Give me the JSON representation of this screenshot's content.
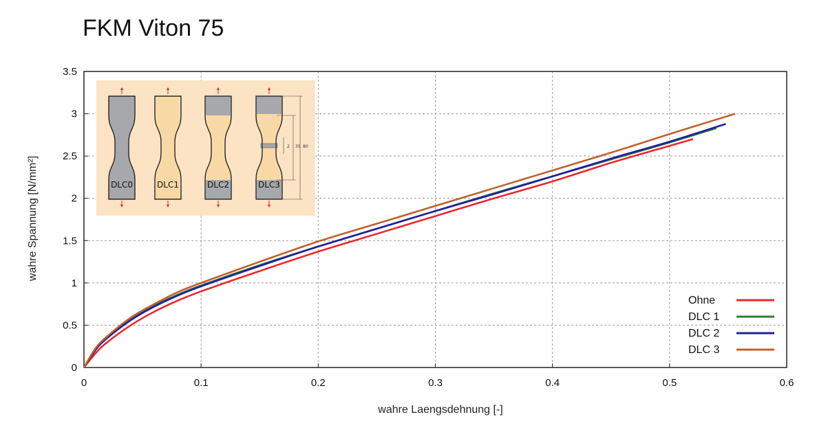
{
  "chart_data": {
    "type": "line",
    "title": "FKM Viton 75",
    "xlabel": "wahre Laengsdehnung [-]",
    "ylabel": "wahre Spannung [N/mm²]",
    "xlim": [
      0,
      0.6
    ],
    "ylim": [
      0,
      3.5
    ],
    "x_ticks": [
      "0",
      "0.1",
      "0.2",
      "0.3",
      "0.4",
      "0.5",
      "0.6"
    ],
    "y_ticks": [
      "0",
      "0.5",
      "1",
      "1.5",
      "2",
      "2.5",
      "3",
      "3.5"
    ],
    "grid": true,
    "legend_position": "bottom-right",
    "series": [
      {
        "name": "Ohne",
        "color": "#e8282e",
        "x": [
          0,
          0.01,
          0.02,
          0.04,
          0.06,
          0.08,
          0.1,
          0.15,
          0.2,
          0.25,
          0.3,
          0.35,
          0.4,
          0.45,
          0.5,
          0.52
        ],
        "y": [
          0,
          0.17,
          0.3,
          0.5,
          0.66,
          0.79,
          0.9,
          1.14,
          1.37,
          1.58,
          1.79,
          2.0,
          2.2,
          2.42,
          2.62,
          2.7
        ]
      },
      {
        "name": "DLC 1",
        "color": "#2e7d32",
        "x": [
          0,
          0.01,
          0.02,
          0.04,
          0.06,
          0.08,
          0.1,
          0.15,
          0.2,
          0.25,
          0.3,
          0.35,
          0.4,
          0.45,
          0.5,
          0.54
        ],
        "y": [
          0,
          0.22,
          0.36,
          0.57,
          0.73,
          0.86,
          0.97,
          1.21,
          1.43,
          1.64,
          1.85,
          2.06,
          2.26,
          2.46,
          2.66,
          2.83
        ]
      },
      {
        "name": "DLC 2",
        "color": "#1f1f9e",
        "x": [
          0,
          0.01,
          0.02,
          0.04,
          0.06,
          0.08,
          0.1,
          0.15,
          0.2,
          0.25,
          0.3,
          0.35,
          0.4,
          0.45,
          0.5,
          0.548
        ],
        "y": [
          0,
          0.21,
          0.35,
          0.56,
          0.72,
          0.85,
          0.96,
          1.2,
          1.43,
          1.64,
          1.85,
          2.05,
          2.26,
          2.47,
          2.67,
          2.88
        ]
      },
      {
        "name": "DLC 3",
        "color": "#c0602a",
        "x": [
          0,
          0.01,
          0.02,
          0.04,
          0.06,
          0.08,
          0.1,
          0.15,
          0.2,
          0.25,
          0.3,
          0.35,
          0.4,
          0.45,
          0.5,
          0.556
        ],
        "y": [
          0,
          0.23,
          0.37,
          0.59,
          0.75,
          0.89,
          1.0,
          1.25,
          1.49,
          1.7,
          1.91,
          2.12,
          2.33,
          2.54,
          2.76,
          3.0
        ]
      }
    ]
  },
  "inset": {
    "specimens": [
      "DLC0",
      "DLC1",
      "DLC2",
      "DLC3"
    ],
    "dimensions": [
      "2",
      "35",
      "80"
    ]
  }
}
